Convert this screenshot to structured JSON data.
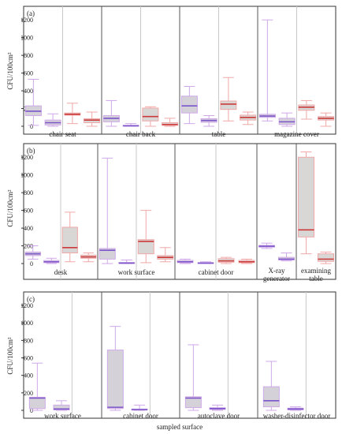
{
  "chart_data": [
    {
      "type": "boxplot",
      "panel_label": "(a)",
      "ylabel": "CFU/100cm²",
      "ylim": [
        0,
        1300
      ],
      "yticks": [
        0,
        200,
        400,
        600,
        800,
        1000,
        1200
      ],
      "categories": [
        "chair seat",
        "chair back",
        "table",
        "magazine cover"
      ],
      "groups": [
        {
          "boxes": [
            {
              "series": "purple",
              "min": 10,
              "q1": 120,
              "median": 170,
              "q3": 230,
              "max": 530
            },
            {
              "series": "purple",
              "min": 0,
              "q1": 15,
              "median": 40,
              "q3": 70,
              "max": 140
            },
            {
              "series": "red",
              "min": 30,
              "q1": 125,
              "median": 135,
              "q3": 150,
              "max": 260
            },
            {
              "series": "red",
              "min": 0,
              "q1": 40,
              "median": 70,
              "q3": 85,
              "max": 160
            }
          ]
        },
        {
          "boxes": [
            {
              "series": "purple",
              "min": 0,
              "q1": 50,
              "median": 90,
              "q3": 120,
              "max": 290
            },
            {
              "series": "purple",
              "min": 0,
              "q1": 2,
              "median": 5,
              "q3": 10,
              "max": 30
            },
            {
              "series": "red",
              "min": 0,
              "q1": 60,
              "median": 110,
              "q3": 205,
              "max": 220
            },
            {
              "series": "red",
              "min": 0,
              "q1": 10,
              "median": 20,
              "q3": 40,
              "max": 90
            }
          ]
        },
        {
          "boxes": [
            {
              "series": "purple",
              "min": 30,
              "q1": 150,
              "median": 230,
              "q3": 340,
              "max": 450
            },
            {
              "series": "purple",
              "min": 0,
              "q1": 45,
              "median": 65,
              "q3": 85,
              "max": 120
            },
            {
              "series": "red",
              "min": 60,
              "q1": 190,
              "median": 250,
              "q3": 285,
              "max": 550
            },
            {
              "series": "red",
              "min": 20,
              "q1": 70,
              "median": 100,
              "q3": 125,
              "max": 160
            }
          ]
        },
        {
          "boxes": [
            {
              "series": "purple",
              "min": 60,
              "q1": 100,
              "median": 115,
              "q3": 135,
              "max": 1200
            },
            {
              "series": "purple",
              "min": 0,
              "q1": 20,
              "median": 50,
              "q3": 90,
              "max": 150
            },
            {
              "series": "red",
              "min": 80,
              "q1": 180,
              "median": 215,
              "q3": 240,
              "max": 290
            },
            {
              "series": "red",
              "min": 0,
              "q1": 70,
              "median": 90,
              "q3": 110,
              "max": 150
            }
          ]
        }
      ]
    },
    {
      "type": "boxplot",
      "panel_label": "(b)",
      "ylabel": "CFU/100cm²",
      "ylim": [
        0,
        1300
      ],
      "yticks": [
        0,
        200,
        400,
        600,
        800,
        1000,
        1200
      ],
      "categories": [
        "desk",
        "work surface",
        "cabinet door",
        "X-ray generator",
        "examining table"
      ],
      "groups": [
        {
          "boxes": [
            {
              "series": "purple",
              "min": 50,
              "q1": 90,
              "median": 110,
              "q3": 130,
              "max": 200
            },
            {
              "series": "purple",
              "min": 0,
              "q1": 10,
              "median": 20,
              "q3": 35,
              "max": 60
            },
            {
              "series": "red",
              "min": 20,
              "q1": 120,
              "median": 180,
              "q3": 410,
              "max": 580
            },
            {
              "series": "red",
              "min": 20,
              "q1": 60,
              "median": 75,
              "q3": 95,
              "max": 120
            }
          ]
        },
        {
          "boxes": [
            {
              "series": "purple",
              "min": 0,
              "q1": 50,
              "median": 150,
              "q3": 170,
              "max": 1190
            },
            {
              "series": "purple",
              "min": 0,
              "q1": 2,
              "median": 5,
              "q3": 12,
              "max": 40
            },
            {
              "series": "red",
              "min": 10,
              "q1": 110,
              "median": 250,
              "q3": 270,
              "max": 600
            },
            {
              "series": "red",
              "min": 20,
              "q1": 50,
              "median": 70,
              "q3": 90,
              "max": 180
            }
          ]
        },
        {
          "boxes": [
            {
              "series": "purple",
              "min": 0,
              "q1": 10,
              "median": 20,
              "q3": 35,
              "max": 50
            },
            {
              "series": "purple",
              "min": 0,
              "q1": 2,
              "median": 5,
              "q3": 10,
              "max": 20
            },
            {
              "series": "red",
              "min": 0,
              "q1": 15,
              "median": 30,
              "q3": 55,
              "max": 70
            },
            {
              "series": "red",
              "min": 0,
              "q1": 10,
              "median": 20,
              "q3": 35,
              "max": 50
            }
          ]
        },
        {
          "boxes": [
            {
              "series": "purple",
              "min": 170,
              "q1": 185,
              "median": 195,
              "q3": 205,
              "max": 230
            },
            {
              "series": "purple",
              "min": 30,
              "q1": 40,
              "median": 50,
              "q3": 70,
              "max": 120
            }
          ]
        },
        {
          "boxes": [
            {
              "series": "red",
              "min": 110,
              "q1": 300,
              "median": 380,
              "q3": 1200,
              "max": 1260
            },
            {
              "series": "red",
              "min": 0,
              "q1": 25,
              "median": 50,
              "q3": 110,
              "max": 130
            }
          ]
        }
      ]
    },
    {
      "type": "boxplot",
      "panel_label": "(c)",
      "ylabel": "CFU/100cm²",
      "xlabel": "sampled surface",
      "ylim": [
        0,
        1300
      ],
      "yticks": [
        0,
        200,
        400,
        600,
        800,
        1000,
        1200
      ],
      "categories": [
        "work surface",
        "cabinet door",
        "autoclave door",
        "washer-disinfector door"
      ],
      "groups": [
        {
          "boxes": [
            {
              "series": "purple",
              "min": 0,
              "q1": 20,
              "median": 140,
              "q3": 150,
              "max": 540
            },
            {
              "series": "purple",
              "min": 0,
              "q1": 5,
              "median": 15,
              "q3": 60,
              "max": 110
            }
          ]
        },
        {
          "boxes": [
            {
              "series": "purple",
              "min": 0,
              "q1": 20,
              "median": 35,
              "q3": 690,
              "max": 960
            },
            {
              "series": "purple",
              "min": 0,
              "q1": 3,
              "median": 8,
              "q3": 15,
              "max": 60
            }
          ]
        },
        {
          "boxes": [
            {
              "series": "purple",
              "min": 0,
              "q1": 30,
              "median": 140,
              "q3": 155,
              "max": 750
            },
            {
              "series": "purple",
              "min": 0,
              "q1": 10,
              "median": 20,
              "q3": 30,
              "max": 60
            }
          ]
        },
        {
          "boxes": [
            {
              "series": "purple",
              "min": 0,
              "q1": 40,
              "median": 110,
              "q3": 270,
              "max": 560
            },
            {
              "series": "purple",
              "min": 0,
              "q1": 5,
              "median": 15,
              "q3": 25,
              "max": 40
            }
          ]
        }
      ]
    }
  ],
  "colors": {
    "purple_median": "#7b55c9",
    "purple_whisker": "#cfa8e8",
    "purple_box": "#d4d2d8",
    "red_median": "#cc3a3a",
    "red_whisker": "#f0a8a8",
    "red_box": "#d9d6d6",
    "divider": "#555555",
    "subdivider": "#c9c9c9",
    "axis": "#333333"
  }
}
